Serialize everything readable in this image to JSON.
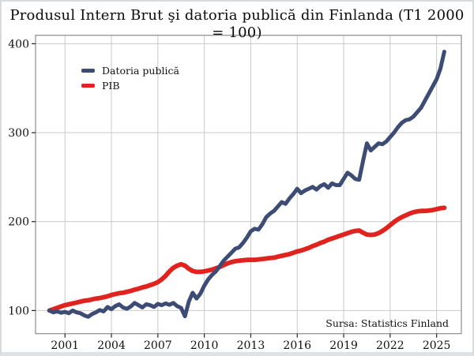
{
  "title": "Produsul Intern Brut şi datoria publică din Finlanda (T1 2000 = 100)",
  "source": "Sursa: Statistics Finland",
  "legend": [
    {
      "label": "Datoria publică",
      "color": "#3d4c74"
    },
    {
      "label": "PIB",
      "color": "#e0231f"
    }
  ],
  "chart_data": {
    "type": "line",
    "title": "Produsul Intern Brut şi datoria publică din Finlanda (T1 2000 = 100)",
    "xlabel": "",
    "ylabel": "",
    "x_ticks": [
      2001,
      2004,
      2007,
      2010,
      2013,
      2016,
      2019,
      2022,
      2025
    ],
    "y_ticks": [
      100,
      200,
      300,
      400
    ],
    "xlim": [
      1999.1,
      2026.6
    ],
    "ylim": [
      74,
      409.5
    ],
    "grid": true,
    "grid_color": "#c9c9c9",
    "frame_color": "#8c8c8c",
    "tick_color": "#222222",
    "legend_position": "upper-left-inside",
    "annotations": [
      "Sursa: Statistics Finland"
    ],
    "x_unit": "year (quarterly)",
    "index_base": "T1 2000 = 100",
    "x": [
      2000,
      2000.25,
      2000.5,
      2000.75,
      2001,
      2001.25,
      2001.5,
      2001.75,
      2002,
      2002.25,
      2002.5,
      2002.75,
      2003,
      2003.25,
      2003.5,
      2003.75,
      2004,
      2004.25,
      2004.5,
      2004.75,
      2005,
      2005.25,
      2005.5,
      2005.75,
      2006,
      2006.25,
      2006.5,
      2006.75,
      2007,
      2007.25,
      2007.5,
      2007.75,
      2008,
      2008.25,
      2008.5,
      2008.75,
      2009,
      2009.25,
      2009.5,
      2009.75,
      2010,
      2010.25,
      2010.5,
      2010.75,
      2011,
      2011.25,
      2011.5,
      2011.75,
      2012,
      2012.25,
      2012.5,
      2012.75,
      2013,
      2013.25,
      2013.5,
      2013.75,
      2014,
      2014.25,
      2014.5,
      2014.75,
      2015,
      2015.25,
      2015.5,
      2015.75,
      2016,
      2016.25,
      2016.5,
      2016.75,
      2017,
      2017.25,
      2017.5,
      2017.75,
      2018,
      2018.25,
      2018.5,
      2018.75,
      2019,
      2019.25,
      2019.5,
      2019.75,
      2020,
      2020.25,
      2020.5,
      2020.75,
      2021,
      2021.25,
      2021.5,
      2021.75,
      2022,
      2022.25,
      2022.5,
      2022.75,
      2023,
      2023.25,
      2023.5,
      2023.75,
      2024,
      2024.25,
      2024.5,
      2024.75,
      2025,
      2025.25,
      2025.5
    ],
    "series": [
      {
        "name": "Datoria publică",
        "color": "#3d4c74",
        "width": 5,
        "values": [
          100,
          98,
          99,
          97.5,
          98.5,
          97,
          100,
          98,
          97,
          94.5,
          93,
          96,
          98,
          100.5,
          99,
          104,
          101.5,
          105,
          107,
          103.5,
          102,
          104.5,
          108.5,
          106,
          103.5,
          107,
          106,
          104,
          107.5,
          106,
          108,
          106.5,
          108.5,
          105,
          103,
          93.5,
          110,
          120,
          113.5,
          119,
          128,
          135,
          140,
          144,
          150,
          156,
          160.5,
          165,
          169.5,
          171,
          176,
          182,
          189,
          192,
          191,
          197,
          205,
          209,
          212,
          217,
          222,
          220,
          226,
          231,
          237,
          232,
          235,
          237,
          239,
          236,
          240,
          242,
          238,
          243,
          241,
          241,
          248,
          255,
          252,
          248,
          247,
          268,
          288,
          280,
          284,
          288,
          287,
          290,
          295,
          300,
          306,
          311,
          314,
          315,
          318,
          323,
          328,
          336,
          344,
          352,
          360,
          372,
          391
        ]
      },
      {
        "name": "PIB",
        "color": "#e0231f",
        "width": 5.8,
        "values": [
          100,
          101.5,
          103,
          104.5,
          106,
          107,
          108,
          109,
          110,
          111,
          111.5,
          112.5,
          113.5,
          114,
          115,
          116,
          117.5,
          118.5,
          119.5,
          120,
          121,
          122,
          123.5,
          124.5,
          126,
          127,
          128.5,
          130,
          132,
          135,
          139,
          144,
          148,
          150.5,
          152,
          150.5,
          147,
          144.5,
          143.5,
          143.5,
          144,
          145,
          146,
          147.5,
          149,
          151,
          153,
          154.5,
          155.5,
          156,
          156.5,
          157,
          157,
          157,
          157.5,
          158,
          158.5,
          159,
          159.5,
          160.5,
          161.5,
          162.5,
          163.5,
          165,
          166.5,
          167.5,
          169,
          170.5,
          172.5,
          174,
          176,
          177.5,
          179.5,
          181,
          182.5,
          184,
          185.5,
          187,
          188.5,
          189.5,
          190,
          187.5,
          185.5,
          185,
          185.5,
          187,
          189.5,
          192.5,
          196,
          199.5,
          202.5,
          205,
          207,
          209,
          210.5,
          211.5,
          212,
          212,
          212.5,
          213,
          214,
          215,
          215.5
        ]
      }
    ]
  }
}
